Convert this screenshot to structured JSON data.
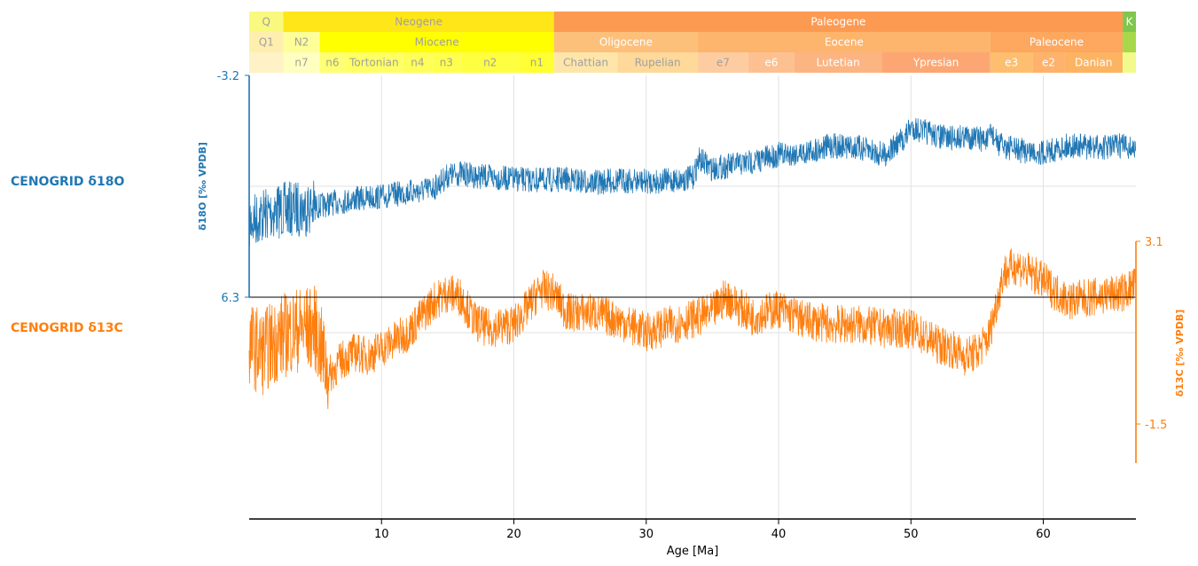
{
  "chart_data": {
    "type": "line",
    "xlabel": "Age [Ma]",
    "xlim": [
      0,
      67
    ],
    "xticks": [
      10,
      20,
      30,
      40,
      50,
      60
    ],
    "timescale": {
      "periods": [
        {
          "label": "Q",
          "start": 0,
          "end": 2.58,
          "color": "#f9f97f"
        },
        {
          "label": "Neogene",
          "start": 2.58,
          "end": 23.03,
          "color": "#ffe619"
        },
        {
          "label": "Paleogene",
          "start": 23.03,
          "end": 66,
          "color": "#fd9a52"
        },
        {
          "label": "K",
          "start": 66,
          "end": 67,
          "color": "#7fc64e"
        }
      ],
      "epochs": [
        {
          "label": "Q1",
          "start": 0,
          "end": 2.58,
          "color": "#ffefaf"
        },
        {
          "label": "N2",
          "start": 2.58,
          "end": 5.33,
          "color": "#ffff99"
        },
        {
          "label": "Miocene",
          "start": 5.33,
          "end": 23.03,
          "color": "#ffff00"
        },
        {
          "label": "Oligocene",
          "start": 23.03,
          "end": 33.9,
          "color": "#fdc07a"
        },
        {
          "label": "Eocene",
          "start": 33.9,
          "end": 56,
          "color": "#fdb46c"
        },
        {
          "label": "Paleocene",
          "start": 56,
          "end": 66,
          "color": "#fda75f"
        },
        {
          "label": "",
          "start": 66,
          "end": 67,
          "color": "#a6d84a"
        }
      ],
      "stages": [
        {
          "label": "",
          "start": 0,
          "end": 2.58,
          "color": "#fff2c7"
        },
        {
          "label": "n7",
          "start": 2.58,
          "end": 5.33,
          "color": "#ffffbf"
        },
        {
          "label": "n6",
          "start": 5.33,
          "end": 7.25,
          "color": "#ffff73"
        },
        {
          "label": "Tortonian",
          "start": 7.25,
          "end": 11.63,
          "color": "#ffff66"
        },
        {
          "label": "n4",
          "start": 11.63,
          "end": 13.82,
          "color": "#ffff59"
        },
        {
          "label": "n3",
          "start": 13.82,
          "end": 15.97,
          "color": "#ffff4d"
        },
        {
          "label": "n2",
          "start": 15.97,
          "end": 20.44,
          "color": "#ffff41"
        },
        {
          "label": "n1",
          "start": 20.44,
          "end": 23.03,
          "color": "#ffff33"
        },
        {
          "label": "Chattian",
          "start": 23.03,
          "end": 27.82,
          "color": "#fee6aa"
        },
        {
          "label": "Rupelian",
          "start": 27.82,
          "end": 33.9,
          "color": "#fed99a"
        },
        {
          "label": "e7",
          "start": 33.9,
          "end": 37.71,
          "color": "#fdcda1"
        },
        {
          "label": "e6",
          "start": 37.71,
          "end": 41.2,
          "color": "#fdc091"
        },
        {
          "label": "Lutetian",
          "start": 41.2,
          "end": 47.8,
          "color": "#fcb482"
        },
        {
          "label": "Ypresian",
          "start": 47.8,
          "end": 56,
          "color": "#fca773"
        },
        {
          "label": "e3",
          "start": 56,
          "end": 59.2,
          "color": "#fdbf6f"
        },
        {
          "label": "e2",
          "start": 59.2,
          "end": 61.6,
          "color": "#feb26c"
        },
        {
          "label": "Danian",
          "start": 61.6,
          "end": 66,
          "color": "#fdb462"
        },
        {
          "label": "",
          "start": 66,
          "end": 67,
          "color": "#f2fa8c"
        }
      ]
    },
    "series": [
      {
        "name": "CENOGRID δ18O",
        "color": "#1f77b4",
        "ylabel": "δ18O [‰ VPDB]",
        "ytick_labels": [
          "-3.2",
          "6.3"
        ],
        "ylim": [
          -3.2,
          6.3
        ],
        "inverted": true,
        "x": [
          0,
          1,
          2,
          3,
          4,
          5,
          6,
          8,
          10,
          12,
          13,
          14,
          15,
          16,
          17,
          18,
          20,
          22,
          24,
          26,
          28,
          30,
          32,
          33.5,
          34,
          35,
          36,
          38,
          40,
          42,
          44,
          46,
          48,
          49.5,
          50,
          51,
          52,
          53,
          54,
          55,
          55.9,
          56,
          56.5,
          58,
          60,
          62,
          64,
          66,
          67
        ],
        "y": [
          3.1,
          2.8,
          2.6,
          2.55,
          2.5,
          2.45,
          2.3,
          2.1,
          2.0,
          1.8,
          1.75,
          1.6,
          1.1,
          1.0,
          1.1,
          1.15,
          1.25,
          1.3,
          1.25,
          1.4,
          1.3,
          1.35,
          1.3,
          1.2,
          0.4,
          0.8,
          0.7,
          0.5,
          0.2,
          0.1,
          -0.2,
          -0.1,
          0.2,
          -0.5,
          -1.0,
          -0.8,
          -0.6,
          -0.5,
          -0.6,
          -0.5,
          -0.4,
          -0.9,
          -0.3,
          0.0,
          0.1,
          -0.2,
          -0.1,
          -0.2,
          0.0
        ],
        "noise": 0.55
      },
      {
        "name": "CENOGRID δ13C",
        "color": "#ff7f0e",
        "ylabel": "δ13C [‰ VPDB]",
        "ytick_labels": [
          "3.1",
          "-1.5"
        ],
        "ylim": [
          -2.5,
          3.1
        ],
        "inverted": false,
        "x": [
          0,
          1,
          2,
          3,
          4,
          5,
          6,
          7,
          8,
          9,
          10,
          11,
          12,
          13,
          14,
          15,
          16,
          17,
          18,
          20,
          21,
          22,
          23,
          24,
          26,
          28,
          30,
          32,
          34,
          35,
          36,
          38,
          40,
          42,
          44,
          46,
          48,
          50,
          52,
          53,
          54,
          55,
          55.9,
          56.1,
          57,
          58,
          59,
          60,
          61,
          62,
          64,
          66,
          67
        ],
        "y": [
          0.5,
          0.3,
          0.6,
          0.8,
          0.9,
          0.9,
          -0.3,
          0.1,
          0.3,
          0.2,
          0.4,
          0.6,
          0.8,
          1.2,
          1.6,
          1.8,
          1.7,
          1.1,
          0.9,
          1.0,
          1.4,
          1.9,
          1.8,
          1.3,
          1.3,
          1.1,
          0.8,
          1.0,
          1.2,
          1.3,
          1.7,
          1.2,
          1.4,
          1.1,
          1.0,
          1.0,
          0.9,
          0.9,
          0.5,
          0.4,
          0.2,
          0.3,
          0.7,
          1.0,
          2.3,
          2.5,
          2.3,
          2.1,
          1.8,
          1.6,
          1.7,
          1.8,
          2.0
        ],
        "noise": 0.5
      }
    ],
    "grid": true,
    "legend_placement": "left"
  }
}
